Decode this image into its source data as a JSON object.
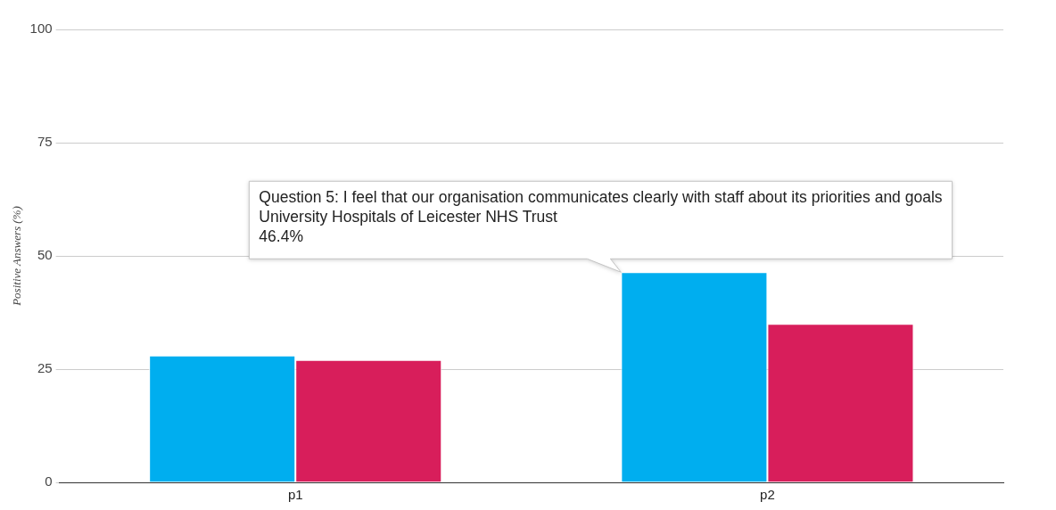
{
  "chart_data": {
    "type": "bar",
    "categories": [
      "p1",
      "p2"
    ],
    "series": [
      {
        "color": "#00aeef",
        "values": [
          28,
          46.4
        ]
      },
      {
        "color": "#d81e5b",
        "values": [
          27,
          35
        ]
      }
    ],
    "ylabel": "Positive Answers (%)",
    "ylim": [
      0,
      100
    ],
    "yticks": [
      0,
      25,
      50,
      75,
      100
    ],
    "grid": "y",
    "annotations": [
      {
        "text": "Question 5: I feel that our organisation communicates clearly with staff about its priorities and goals\nUniversity Hospitals of Leicester NHS Trust\n46.4%",
        "x": "p2",
        "y": 46.4
      }
    ]
  }
}
